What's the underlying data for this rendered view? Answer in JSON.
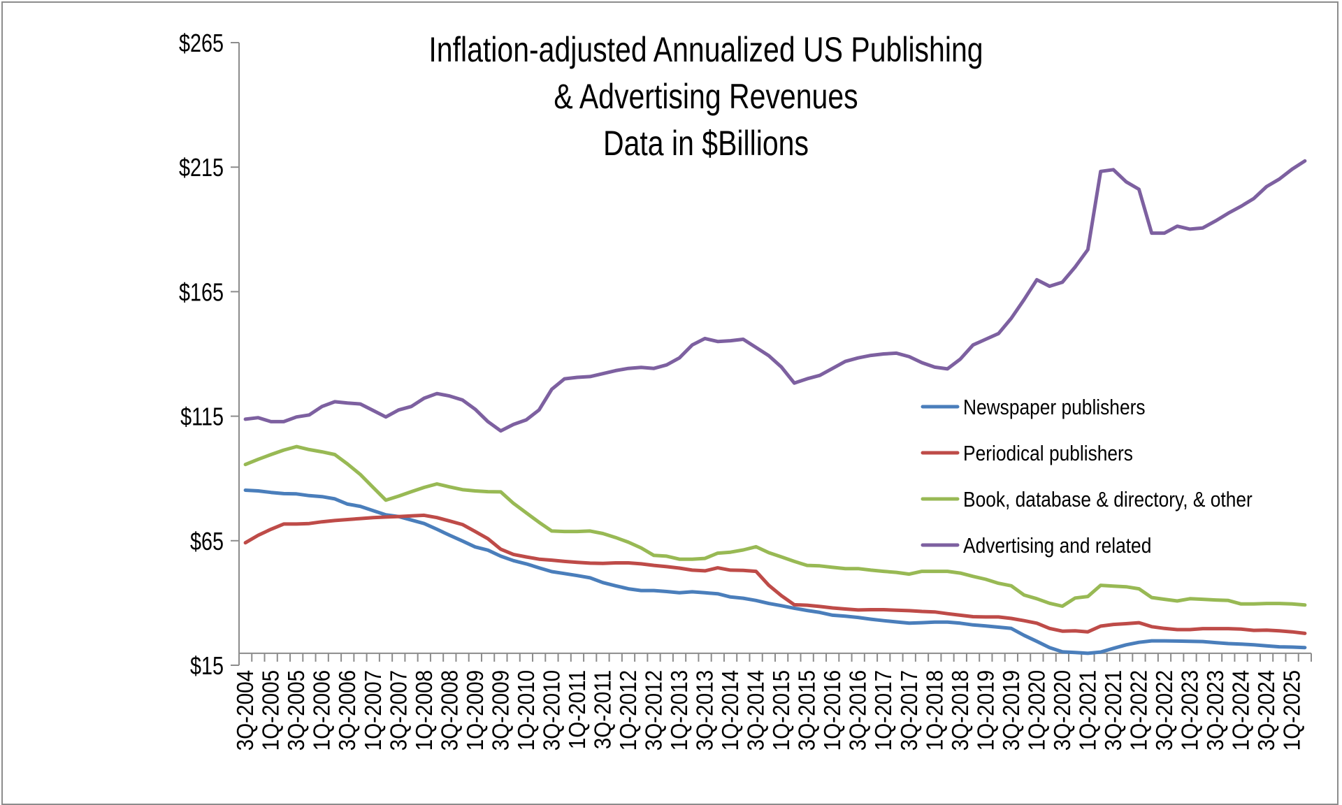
{
  "chart_data": {
    "type": "line",
    "title": [
      "Inflation-adjusted Annualized US Publishing",
      "& Advertising Revenues",
      "Data in $Billions"
    ],
    "xlabel": "",
    "ylabel": "",
    "ylim": [
      15,
      265
    ],
    "yticks": [
      15,
      65,
      115,
      165,
      215,
      265
    ],
    "ytick_labels": [
      "$15",
      "$65",
      "$115",
      "$165",
      "$215",
      "$265"
    ],
    "x_axis_crosses_at": 19.8,
    "grid": false,
    "legend_position": "right-middle",
    "x": [
      "3Q-2004",
      "4Q-2004",
      "1Q-2005",
      "2Q-2005",
      "3Q-2005",
      "4Q-2005",
      "1Q-2006",
      "2Q-2006",
      "3Q-2006",
      "4Q-2006",
      "1Q-2007",
      "2Q-2007",
      "3Q-2007",
      "4Q-2007",
      "1Q-2008",
      "2Q-2008",
      "3Q-2008",
      "4Q-2008",
      "1Q-2009",
      "2Q-2009",
      "3Q-2009",
      "4Q-2009",
      "1Q-2010",
      "2Q-2010",
      "3Q-2010",
      "4Q-2010",
      "1Q-2011",
      "2Q-2011",
      "3Q-2011",
      "4Q-2011",
      "1Q-2012",
      "2Q-2012",
      "3Q-2012",
      "4Q-2012",
      "1Q-2013",
      "2Q-2013",
      "3Q-2013",
      "4Q-2013",
      "1Q-2014",
      "2Q-2014",
      "3Q-2014",
      "4Q-2014",
      "1Q-2015",
      "2Q-2015",
      "3Q-2015",
      "4Q-2015",
      "1Q-2016",
      "2Q-2016",
      "3Q-2016",
      "4Q-2016",
      "1Q-2017",
      "2Q-2017",
      "3Q-2017",
      "4Q-2017",
      "1Q-2018",
      "2Q-2018",
      "3Q-2018",
      "4Q-2018",
      "1Q-2019",
      "2Q-2019",
      "3Q-2019",
      "4Q-2019",
      "1Q-2020",
      "2Q-2020",
      "3Q-2020",
      "4Q-2020",
      "1Q-2021",
      "2Q-2021",
      "3Q-2021",
      "4Q-2021",
      "1Q-2022",
      "2Q-2022",
      "3Q-2022",
      "4Q-2022",
      "1Q-2023",
      "2Q-2023",
      "3Q-2023",
      "4Q-2023",
      "1Q-2024",
      "2Q-2024",
      "3Q-2024",
      "4Q-2024",
      "1Q-2025",
      "2Q-2025"
    ],
    "x_label_every": 2,
    "series": [
      {
        "name": "Newspaper publishers",
        "color": "#4A7EBB",
        "values": [
          85.3,
          85.0,
          84.4,
          83.9,
          83.8,
          83.1,
          82.7,
          81.8,
          79.7,
          78.8,
          77.1,
          75.4,
          74.7,
          73.3,
          71.9,
          69.6,
          67.2,
          64.9,
          62.5,
          61.2,
          58.8,
          57.0,
          55.7,
          54.1,
          52.6,
          51.8,
          51.0,
          50.1,
          48.2,
          46.9,
          45.7,
          45.0,
          45.0,
          44.6,
          44.1,
          44.5,
          44.1,
          43.7,
          42.4,
          41.9,
          41.0,
          39.8,
          38.9,
          37.9,
          37.0,
          36.2,
          35.1,
          34.7,
          34.2,
          33.5,
          32.9,
          32.4,
          31.9,
          32.1,
          32.3,
          32.3,
          31.9,
          31.2,
          30.8,
          30.3,
          29.8,
          27.0,
          24.6,
          22.1,
          20.4,
          20.1,
          19.8,
          20.3,
          21.8,
          23.2,
          24.2,
          24.8,
          24.8,
          24.7,
          24.6,
          24.5,
          24.1,
          23.7,
          23.5,
          23.2,
          22.8,
          22.4,
          22.3,
          22.1
        ]
      },
      {
        "name": "Periodical publishers",
        "color": "#BE4B48",
        "values": [
          64.2,
          67.2,
          69.6,
          71.7,
          71.7,
          71.9,
          72.6,
          73.1,
          73.5,
          73.9,
          74.3,
          74.5,
          74.7,
          75.0,
          75.2,
          74.3,
          72.9,
          71.5,
          68.7,
          65.8,
          61.6,
          59.5,
          58.5,
          57.6,
          57.2,
          56.7,
          56.3,
          56.0,
          55.9,
          56.1,
          56.1,
          55.7,
          55.1,
          54.6,
          54.0,
          53.2,
          52.9,
          54.1,
          53.2,
          53.1,
          52.7,
          47.1,
          42.9,
          39.3,
          39.1,
          38.6,
          38.0,
          37.6,
          37.2,
          37.3,
          37.3,
          37.1,
          36.9,
          36.6,
          36.4,
          35.7,
          35.1,
          34.5,
          34.4,
          34.4,
          33.8,
          32.9,
          31.9,
          29.8,
          28.7,
          28.8,
          28.4,
          30.7,
          31.4,
          31.7,
          32.1,
          30.5,
          29.8,
          29.3,
          29.3,
          29.7,
          29.7,
          29.7,
          29.5,
          29.0,
          29.1,
          28.8,
          28.4,
          27.8
        ]
      },
      {
        "name": "Book, database & directory, & other",
        "color": "#98B954",
        "values": [
          95.6,
          97.7,
          99.6,
          101.4,
          102.8,
          101.6,
          100.7,
          99.6,
          95.8,
          91.6,
          86.4,
          81.3,
          82.9,
          84.7,
          86.4,
          87.8,
          86.6,
          85.5,
          85.0,
          84.7,
          84.6,
          80.0,
          76.2,
          72.4,
          68.9,
          68.7,
          68.7,
          68.9,
          67.9,
          66.3,
          64.4,
          62.1,
          59.1,
          58.8,
          57.6,
          57.6,
          57.9,
          60.0,
          60.4,
          61.3,
          62.6,
          60.2,
          58.5,
          56.7,
          55.1,
          54.9,
          54.3,
          53.8,
          53.8,
          53.2,
          52.7,
          52.3,
          51.6,
          52.7,
          52.7,
          52.7,
          52.0,
          50.7,
          49.5,
          47.9,
          46.9,
          43.2,
          41.7,
          39.9,
          38.7,
          42.0,
          42.6,
          47.1,
          46.8,
          46.5,
          45.7,
          42.2,
          41.5,
          40.8,
          41.7,
          41.5,
          41.2,
          41.0,
          39.6,
          39.6,
          39.8,
          39.8,
          39.6,
          39.2
        ]
      },
      {
        "name": "Advertising and related",
        "color": "#7D60A0",
        "values": [
          113.8,
          114.4,
          112.8,
          112.8,
          114.7,
          115.5,
          118.9,
          120.8,
          120.3,
          119.9,
          117.3,
          114.7,
          117.5,
          118.9,
          122.2,
          124.1,
          123.1,
          121.5,
          117.8,
          112.8,
          109.1,
          111.7,
          113.5,
          117.5,
          125.8,
          130.0,
          130.6,
          130.9,
          132.1,
          133.3,
          134.2,
          134.6,
          134.2,
          135.6,
          138.4,
          143.6,
          146.2,
          145.0,
          145.3,
          145.9,
          142.6,
          139.3,
          134.7,
          128.3,
          130.0,
          131.4,
          134.2,
          137.0,
          138.4,
          139.4,
          140.0,
          140.3,
          138.9,
          136.5,
          134.7,
          134.0,
          137.9,
          143.6,
          145.9,
          148.2,
          154.3,
          161.8,
          169.8,
          167.2,
          168.8,
          174.9,
          181.9,
          213.3,
          214.0,
          209.1,
          206.1,
          188.5,
          188.5,
          191.3,
          190.1,
          190.6,
          193.4,
          196.5,
          199.3,
          202.4,
          207.2,
          210.2,
          214.2,
          217.5
        ]
      }
    ]
  }
}
